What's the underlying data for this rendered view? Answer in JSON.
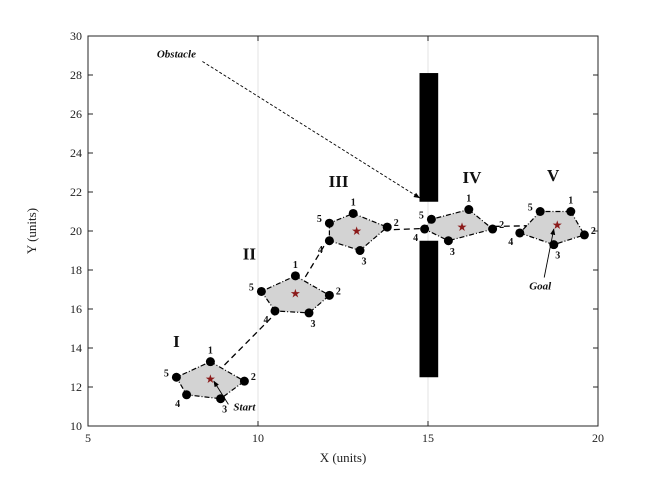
{
  "chart_data": {
    "type": "scatter",
    "xlabel": "X (units)",
    "ylabel": "Y (units)",
    "xlim": [
      5,
      20
    ],
    "ylim": [
      10,
      30
    ],
    "xticks": [
      "5",
      "10",
      "15",
      "20"
    ],
    "yticks": [
      "10",
      "12",
      "14",
      "16",
      "18",
      "20",
      "22",
      "24",
      "26",
      "28",
      "30"
    ],
    "grid": "vertical lines at x = 10 and x = 15",
    "formations": [
      {
        "label": "I",
        "center": [
          8.6,
          12.4
        ],
        "vertices": [
          [
            8.6,
            13.3
          ],
          [
            9.6,
            12.3
          ],
          [
            8.9,
            11.4
          ],
          [
            7.9,
            11.6
          ],
          [
            7.6,
            12.5
          ]
        ],
        "vertex_labels": [
          "1",
          "2",
          "3",
          "4",
          "5"
        ]
      },
      {
        "label": "II",
        "center": [
          11.1,
          16.8
        ],
        "vertices": [
          [
            11.1,
            17.7
          ],
          [
            12.1,
            16.7
          ],
          [
            11.5,
            15.8
          ],
          [
            10.5,
            15.9
          ],
          [
            10.1,
            16.9
          ]
        ],
        "vertex_labels": [
          "1",
          "2",
          "3",
          "4",
          "5"
        ]
      },
      {
        "label": "III",
        "center": [
          12.9,
          20.0
        ],
        "vertices": [
          [
            12.8,
            20.9
          ],
          [
            13.8,
            20.2
          ],
          [
            13.0,
            19.0
          ],
          [
            12.1,
            19.5
          ],
          [
            12.1,
            20.4
          ]
        ],
        "vertex_labels": [
          "1",
          "2",
          "3",
          "4",
          "5"
        ]
      },
      {
        "label": "IV",
        "center": [
          16.0,
          20.2
        ],
        "vertices": [
          [
            16.2,
            21.1
          ],
          [
            16.9,
            20.1
          ],
          [
            15.6,
            19.5
          ],
          [
            14.9,
            20.1
          ],
          [
            15.1,
            20.6
          ]
        ],
        "vertex_labels": [
          "1",
          "2",
          "3",
          "4",
          "5"
        ]
      },
      {
        "label": "V",
        "center": [
          18.8,
          20.3
        ],
        "vertices": [
          [
            19.2,
            21.0
          ],
          [
            19.6,
            19.8
          ],
          [
            18.7,
            19.3
          ],
          [
            17.7,
            19.9
          ],
          [
            18.3,
            21.0
          ]
        ],
        "vertex_labels": [
          "1",
          "2",
          "3",
          "4",
          "5"
        ]
      }
    ],
    "trajectory": [
      [
        8.6,
        12.4
      ],
      [
        11.1,
        16.8
      ],
      [
        12.0,
        19.4
      ],
      [
        12.9,
        20.0
      ],
      [
        16.0,
        20.2
      ],
      [
        18.8,
        20.3
      ]
    ],
    "obstacles": [
      {
        "x": [
          14.75,
          15.3
        ],
        "y": [
          21.5,
          28.1
        ]
      },
      {
        "x": [
          14.75,
          15.3
        ],
        "y": [
          12.5,
          19.5
        ]
      }
    ],
    "annotations": [
      {
        "text": "Obstacle",
        "label_at": [
          7.6,
          28.9
        ],
        "point_to": [
          14.75,
          21.7
        ]
      },
      {
        "text": "Start",
        "label_at": [
          9.6,
          10.8
        ],
        "point_to": [
          8.7,
          12.3
        ]
      },
      {
        "text": "Goal",
        "label_at": [
          18.3,
          17.0
        ],
        "point_to": [
          18.7,
          20.1
        ]
      }
    ],
    "colors": {
      "formation_fill": "#d3d3d3",
      "vertex": "#000000",
      "center_star": "#8b1a1a",
      "obstacle": "#000000",
      "path": "#000000"
    }
  }
}
